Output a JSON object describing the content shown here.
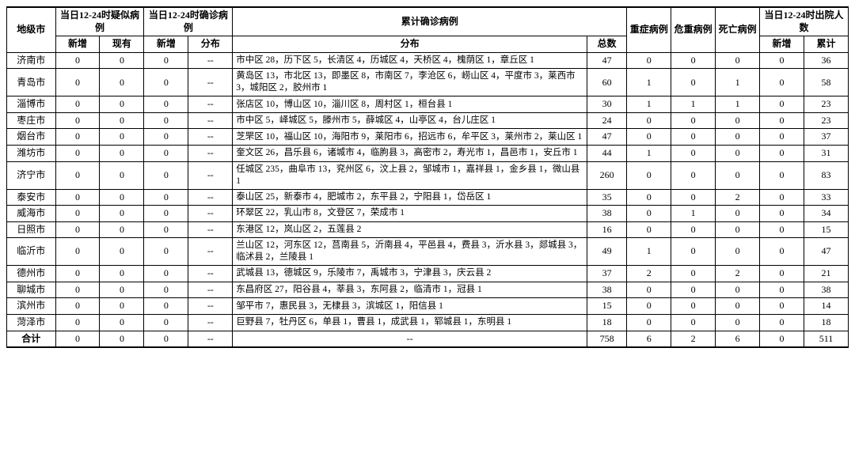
{
  "header": {
    "city": "地级市",
    "suspect_group": "当日12-24时疑似病例",
    "confirm_day_group": "当日12-24时确诊病例",
    "cumulative_group": "累计确诊病例",
    "severe": "重症病例",
    "critical": "危重病例",
    "death": "死亡病例",
    "discharge_group": "当日12-24时出院人数",
    "new": "新增",
    "existing": "现有",
    "dist": "分布",
    "total": "总数",
    "cum": "累计"
  },
  "rows": [
    {
      "city": "济南市",
      "sn": "0",
      "se": "0",
      "cn": "0",
      "cd": "--",
      "dist": "市中区 28，历下区 5，长清区 4，历城区 4，天桥区 4，槐荫区 1，章丘区 1",
      "tot": "47",
      "sev": "0",
      "cri": "0",
      "dea": "0",
      "dn": "0",
      "dc": "36"
    },
    {
      "city": "青岛市",
      "sn": "0",
      "se": "0",
      "cn": "0",
      "cd": "--",
      "dist": "黄岛区 13，市北区 13，即墨区 8，市南区 7，李沧区 6，崂山区 4，平度市 3，莱西市 3，城阳区 2，胶州市 1",
      "tot": "60",
      "sev": "1",
      "cri": "0",
      "dea": "1",
      "dn": "0",
      "dc": "58"
    },
    {
      "city": "淄博市",
      "sn": "0",
      "se": "0",
      "cn": "0",
      "cd": "--",
      "dist": "张店区 10，博山区 10，淄川区 8，周村区 1，桓台县 1",
      "tot": "30",
      "sev": "1",
      "cri": "1",
      "dea": "1",
      "dn": "0",
      "dc": "23"
    },
    {
      "city": "枣庄市",
      "sn": "0",
      "se": "0",
      "cn": "0",
      "cd": "--",
      "dist": "市中区 5，峄城区 5，滕州市 5，薛城区 4，山亭区 4，台儿庄区 1",
      "tot": "24",
      "sev": "0",
      "cri": "0",
      "dea": "0",
      "dn": "0",
      "dc": "23"
    },
    {
      "city": "烟台市",
      "sn": "0",
      "se": "0",
      "cn": "0",
      "cd": "--",
      "dist": "芝罘区 10，福山区 10，海阳市 9，莱阳市 6，招远市 6，牟平区 3，莱州市 2，莱山区 1",
      "tot": "47",
      "sev": "0",
      "cri": "0",
      "dea": "0",
      "dn": "0",
      "dc": "37"
    },
    {
      "city": "潍坊市",
      "sn": "0",
      "se": "0",
      "cn": "0",
      "cd": "--",
      "dist": "奎文区 26，昌乐县 6，诸城市 4，临朐县 3，高密市 2，寿光市 1，昌邑市 1，安丘市 1",
      "tot": "44",
      "sev": "1",
      "cri": "0",
      "dea": "0",
      "dn": "0",
      "dc": "31"
    },
    {
      "city": "济宁市",
      "sn": "0",
      "se": "0",
      "cn": "0",
      "cd": "--",
      "dist": "任城区 235，曲阜市 13，兖州区 6，汶上县 2，邹城市 1，嘉祥县 1，金乡县 1，微山县 1",
      "tot": "260",
      "sev": "0",
      "cri": "0",
      "dea": "0",
      "dn": "0",
      "dc": "83"
    },
    {
      "city": "泰安市",
      "sn": "0",
      "se": "0",
      "cn": "0",
      "cd": "--",
      "dist": "泰山区 25，新泰市 4，肥城市 2，东平县 2，宁阳县 1，岱岳区 1",
      "tot": "35",
      "sev": "0",
      "cri": "0",
      "dea": "2",
      "dn": "0",
      "dc": "33"
    },
    {
      "city": "威海市",
      "sn": "0",
      "se": "0",
      "cn": "0",
      "cd": "--",
      "dist": "环翠区 22，乳山市 8，文登区 7，荣成市 1",
      "tot": "38",
      "sev": "0",
      "cri": "1",
      "dea": "0",
      "dn": "0",
      "dc": "34"
    },
    {
      "city": "日照市",
      "sn": "0",
      "se": "0",
      "cn": "0",
      "cd": "--",
      "dist": "东港区 12，岚山区 2，五莲县 2",
      "tot": "16",
      "sev": "0",
      "cri": "0",
      "dea": "0",
      "dn": "0",
      "dc": "15"
    },
    {
      "city": "临沂市",
      "sn": "0",
      "se": "0",
      "cn": "0",
      "cd": "--",
      "dist": "兰山区 12，河东区 12，莒南县 5，沂南县 4，平邑县 4，费县 3，沂水县 3，郯城县 3，临沭县 2，兰陵县 1",
      "tot": "49",
      "sev": "1",
      "cri": "0",
      "dea": "0",
      "dn": "0",
      "dc": "47"
    },
    {
      "city": "德州市",
      "sn": "0",
      "se": "0",
      "cn": "0",
      "cd": "--",
      "dist": "武城县 13，德城区 9，乐陵市 7，禹城市 3，宁津县 3，庆云县 2",
      "tot": "37",
      "sev": "2",
      "cri": "0",
      "dea": "2",
      "dn": "0",
      "dc": "21"
    },
    {
      "city": "聊城市",
      "sn": "0",
      "se": "0",
      "cn": "0",
      "cd": "--",
      "dist": "东昌府区 27，阳谷县 4，莘县 3，东阿县 2，临清市 1，冠县 1",
      "tot": "38",
      "sev": "0",
      "cri": "0",
      "dea": "0",
      "dn": "0",
      "dc": "38"
    },
    {
      "city": "滨州市",
      "sn": "0",
      "se": "0",
      "cn": "0",
      "cd": "--",
      "dist": "邹平市 7，惠民县 3，无棣县 3，滨城区 1，阳信县 1",
      "tot": "15",
      "sev": "0",
      "cri": "0",
      "dea": "0",
      "dn": "0",
      "dc": "14"
    },
    {
      "city": "菏泽市",
      "sn": "0",
      "se": "0",
      "cn": "0",
      "cd": "--",
      "dist": "巨野县 7，牡丹区 6，单县 1，曹县 1，成武县 1，郓城县 1，东明县 1",
      "tot": "18",
      "sev": "0",
      "cri": "0",
      "dea": "0",
      "dn": "0",
      "dc": "18"
    }
  ],
  "total_row": {
    "city": "合计",
    "sn": "0",
    "se": "0",
    "cn": "0",
    "cd": "--",
    "dist": "--",
    "tot": "758",
    "sev": "6",
    "cri": "2",
    "dea": "6",
    "dn": "0",
    "dc": "511"
  }
}
